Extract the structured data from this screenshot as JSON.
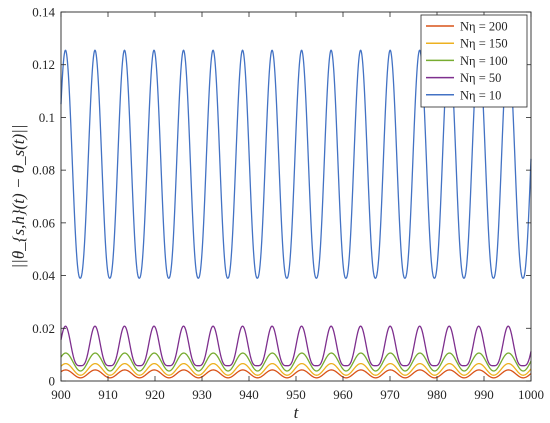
{
  "chart_data": {
    "type": "line",
    "xlabel": "t",
    "ylabel": "||θ_{s,h}(t) − θ_s(t)||",
    "xlim": [
      900,
      1000
    ],
    "ylim": [
      0,
      0.14
    ],
    "x_ticks": [
      900,
      910,
      920,
      930,
      940,
      950,
      960,
      970,
      980,
      990,
      1000
    ],
    "x_tick_labels": [
      "900",
      "910",
      "920",
      "930",
      "940",
      "950",
      "960",
      "970",
      "980",
      "990",
      "1000"
    ],
    "y_ticks": [
      0,
      0.02,
      0.04,
      0.06,
      0.08,
      0.1,
      0.12,
      0.14
    ],
    "y_tick_labels": [
      "0",
      "0.02",
      "0.04",
      "0.06",
      "0.08",
      "0.1",
      "0.12",
      "0.14"
    ],
    "grid": false,
    "legend_position": "top-right",
    "period": 6.28,
    "series": [
      {
        "name": "N_η = 200",
        "label": "Nη = 200",
        "color": "#D95319",
        "min": 0.0012,
        "max": 0.0042,
        "peak_t": 901.0,
        "sharpness": 1.0
      },
      {
        "name": "N_η = 150",
        "label": "Nη = 150",
        "color": "#EDB120",
        "min": 0.0022,
        "max": 0.0066,
        "peak_t": 901.0,
        "sharpness": 1.0
      },
      {
        "name": "N_η = 100",
        "label": "Nη = 100",
        "color": "#77AC30",
        "min": 0.0038,
        "max": 0.0106,
        "peak_t": 901.0,
        "sharpness": 1.0
      },
      {
        "name": "N_η = 50",
        "label": "Nη = 50",
        "color": "#7E2F8E",
        "min": 0.0058,
        "max": 0.0208,
        "peak_t": 900.95,
        "sharpness": 1.8
      },
      {
        "name": "N_η = 10",
        "label": "Nη = 10",
        "color": "#4372C4",
        "min": 0.039,
        "max": 0.1255,
        "peak_t": 900.95,
        "sharpness": 1.15
      }
    ]
  }
}
